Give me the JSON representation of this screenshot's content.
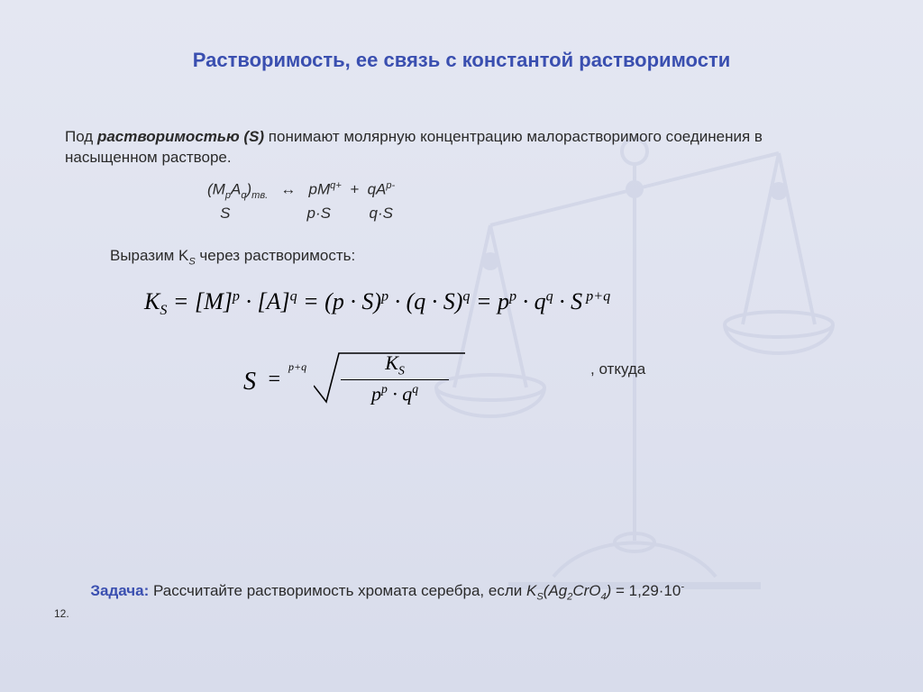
{
  "colors": {
    "bg_top": "#e4e7f2",
    "bg_bottom": "#d8dceb",
    "title": "#3a4fb0",
    "text": "#2a2a2a",
    "formula": "#000000",
    "scales_stroke": "#c9cee2"
  },
  "title": "Растворимость, ее связь с константой растворимости",
  "intro": {
    "prefix": "Под ",
    "term": "растворимостью (S)",
    "rest": " понимают молярную концентрацию малорастворимого соединения в насыщенном растворе."
  },
  "equilibrium": {
    "left": "(M",
    "p": "p",
    "mid1": "A",
    "q": "q",
    "mid2": ")",
    "tv": "тв.",
    "arrow": "   ↔   pM",
    "qplus": "q+",
    "plus": "  +  qA",
    "pminus": "p-",
    "row2_S": "S",
    "row2_pS": "p·S",
    "row2_qS": "q·S"
  },
  "line2": "Выразим K",
  "line2_sub": "S",
  "line2_rest": " через растворимость:",
  "ks_html": "K<span class=\"sub2\">S</span> = [<i>M</i>]<span class=\"sup2\">p</span> · [<i>A</i>]<span class=\"sup2\">q</span> = (p · S)<span class=\"sup2\">p</span> · (q · S)<span class=\"sup2\">q</span> = p<span class=\"sup2\">p</span> · q<span class=\"sup2\">q</span> · S<span class=\"sup2\"> p+q</span>",
  "otkuda": ", откуда",
  "root": {
    "S": "S",
    "eq": "=",
    "index": "p+q",
    "num": "K<span class=\"sub2\">S</span>",
    "den": "p<span class=\"sup2\">p</span> · q<span class=\"sup2\">q</span>"
  },
  "task": {
    "label": "Задача:",
    "text": " Рассчитайте растворимость хромата серебра, если ",
    "ks": "K",
    "ks_sub": "S",
    "compound": "(Ag",
    "two": "2",
    "compound2": "CrO",
    "four": "4",
    "close": ")",
    "equals": " = 1,29·10",
    "minus": "-",
    "exp_tail": "12"
  }
}
